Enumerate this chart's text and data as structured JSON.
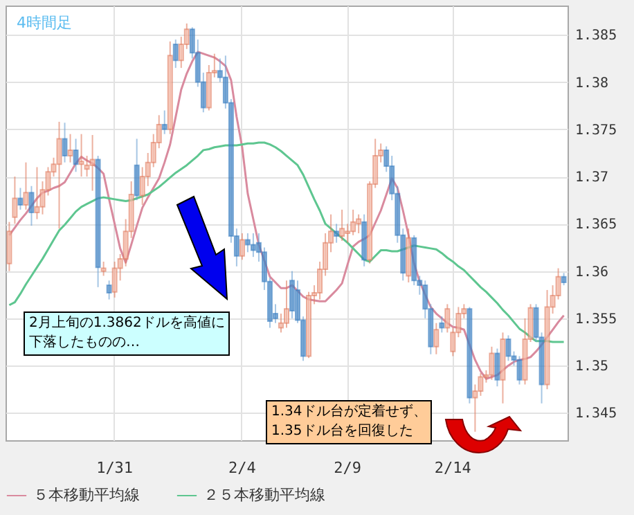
{
  "chart_data": {
    "type": "candlestick",
    "title": "4時間足",
    "categories": [
      null,
      null,
      null,
      null,
      null,
      null,
      null,
      null,
      null,
      null,
      null,
      null,
      null,
      null,
      null,
      null,
      null,
      null,
      null,
      "1/31",
      null,
      null,
      null,
      null,
      null,
      null,
      null,
      null,
      null,
      null,
      null,
      null,
      null,
      null,
      null,
      null,
      null,
      null,
      null,
      null,
      null,
      null,
      "2/4",
      null,
      null,
      null,
      null,
      null,
      null,
      null,
      null,
      null,
      null,
      null,
      null,
      null,
      null,
      null,
      null,
      null,
      null,
      "2/9",
      null,
      null,
      null,
      null,
      null,
      null,
      null,
      null,
      null,
      null,
      null,
      null,
      null,
      null,
      null,
      null,
      null,
      null,
      "2/14",
      null,
      null,
      null,
      null,
      null,
      null,
      null,
      null,
      null,
      null,
      null,
      null,
      null,
      null,
      null,
      null,
      null,
      null,
      null,
      null
    ],
    "ohlc": [
      [
        1.3608,
        1.3652,
        1.36,
        1.3642
      ],
      [
        1.3657,
        1.37,
        1.365,
        1.3677
      ],
      [
        1.3677,
        1.3688,
        1.3665,
        1.367
      ],
      [
        1.367,
        1.3715,
        1.3665,
        1.3683
      ],
      [
        1.3683,
        1.369,
        1.3648,
        1.3662
      ],
      [
        1.3662,
        1.371,
        1.3655,
        1.3668
      ],
      [
        1.3668,
        1.3695,
        1.366,
        1.3686
      ],
      [
        1.3686,
        1.371,
        1.368,
        1.3705
      ],
      [
        1.3705,
        1.372,
        1.37,
        1.3713
      ],
      [
        1.3713,
        1.3758,
        1.3645,
        1.374
      ],
      [
        1.374,
        1.3757,
        1.3715,
        1.3722
      ],
      [
        1.3722,
        1.3745,
        1.3715,
        1.3728
      ],
      [
        1.3728,
        1.374,
        1.3705,
        1.3713
      ],
      [
        1.3713,
        1.3745,
        1.37,
        1.3716
      ],
      [
        1.3708,
        1.3722,
        1.37,
        1.3712
      ],
      [
        1.3712,
        1.3744,
        1.3685,
        1.3718
      ],
      [
        1.3718,
        1.3722,
        1.3583,
        1.3604
      ],
      [
        1.36,
        1.361,
        1.3595,
        1.3603
      ],
      [
        1.3585,
        1.359,
        1.357,
        1.3577
      ],
      [
        1.3578,
        1.361,
        1.3572,
        1.3603
      ],
      [
        1.3603,
        1.3618,
        1.359,
        1.3613
      ],
      [
        1.3613,
        1.3655,
        1.3605,
        1.3642
      ],
      [
        1.3642,
        1.3695,
        1.3635,
        1.3681
      ],
      [
        1.3712,
        1.374,
        1.3675,
        1.368
      ],
      [
        1.368,
        1.371,
        1.367,
        1.37
      ],
      [
        1.37,
        1.3725,
        1.369,
        1.3715
      ],
      [
        1.3715,
        1.3745,
        1.371,
        1.3736
      ],
      [
        1.3736,
        1.3765,
        1.373,
        1.3755
      ],
      [
        1.3755,
        1.377,
        1.3745,
        1.375
      ],
      [
        1.375,
        1.3843,
        1.3745,
        1.3828
      ],
      [
        1.384,
        1.3845,
        1.3815,
        1.3823
      ],
      [
        1.3823,
        1.3848,
        1.3815,
        1.384
      ],
      [
        1.384,
        1.3862,
        1.3835,
        1.3856
      ],
      [
        1.3856,
        1.3858,
        1.3825,
        1.3831
      ],
      [
        1.3831,
        1.3845,
        1.3795,
        1.38
      ],
      [
        1.38,
        1.381,
        1.3768,
        1.3773
      ],
      [
        1.3773,
        1.3818,
        1.377,
        1.381
      ],
      [
        1.381,
        1.383,
        1.3805,
        1.3812
      ],
      [
        1.3812,
        1.3825,
        1.38,
        1.3805
      ],
      [
        1.3805,
        1.3828,
        1.3772,
        1.3778
      ],
      [
        1.3778,
        1.3782,
        1.363,
        1.3637
      ],
      [
        1.3637,
        1.3645,
        1.3605,
        1.3616
      ],
      [
        1.3616,
        1.364,
        1.3612,
        1.3633
      ],
      [
        1.3633,
        1.364,
        1.362,
        1.3628
      ],
      [
        1.3628,
        1.364,
        1.3615,
        1.3622
      ],
      [
        1.363,
        1.364,
        1.361,
        1.362
      ],
      [
        1.362,
        1.3625,
        1.358,
        1.3589
      ],
      [
        1.3589,
        1.3593,
        1.354,
        1.3547
      ],
      [
        1.3555,
        1.3565,
        1.3545,
        1.355
      ],
      [
        1.354,
        1.3555,
        1.3535,
        1.3545
      ],
      [
        1.3545,
        1.359,
        1.354,
        1.356
      ],
      [
        1.359,
        1.36,
        1.355,
        1.3558
      ],
      [
        1.358,
        1.359,
        1.3545,
        1.3548
      ],
      [
        1.3548,
        1.3552,
        1.3505,
        1.351
      ],
      [
        1.351,
        1.3578,
        1.3508,
        1.3574
      ],
      [
        1.3574,
        1.3585,
        1.3565,
        1.3577
      ],
      [
        1.3577,
        1.361,
        1.357,
        1.3602
      ],
      [
        1.3602,
        1.364,
        1.3595,
        1.363
      ],
      [
        1.363,
        1.366,
        1.362,
        1.3642
      ],
      [
        1.3642,
        1.365,
        1.363,
        1.3637
      ],
      [
        1.3637,
        1.3665,
        1.3632,
        1.3645
      ],
      [
        1.364,
        1.365,
        1.363,
        1.3642
      ],
      [
        1.3642,
        1.3665,
        1.3638,
        1.3652
      ],
      [
        1.365,
        1.366,
        1.364,
        1.3655
      ],
      [
        1.3652,
        1.366,
        1.3605,
        1.3612
      ],
      [
        1.3612,
        1.3695,
        1.3608,
        1.3692
      ],
      [
        1.3692,
        1.374,
        1.3688,
        1.3722
      ],
      [
        1.3722,
        1.3735,
        1.3715,
        1.3728
      ],
      [
        1.3728,
        1.3732,
        1.3705,
        1.3711
      ],
      [
        1.3711,
        1.3722,
        1.3675,
        1.3682
      ],
      [
        1.3682,
        1.369,
        1.363,
        1.3638
      ],
      [
        1.3638,
        1.3645,
        1.359,
        1.3598
      ],
      [
        1.3595,
        1.3645,
        1.3588,
        1.3635
      ],
      [
        1.3635,
        1.3638,
        1.3585,
        1.359
      ],
      [
        1.359,
        1.3595,
        1.3575,
        1.3585
      ],
      [
        1.3585,
        1.359,
        1.355,
        1.356
      ],
      [
        1.356,
        1.3565,
        1.3512,
        1.352
      ],
      [
        1.352,
        1.3545,
        1.3512,
        1.3538
      ],
      [
        1.3545,
        1.3552,
        1.3535,
        1.354
      ],
      [
        1.354,
        1.3565,
        1.3535,
        1.356
      ],
      [
        1.3515,
        1.354,
        1.351,
        1.3535
      ],
      [
        1.3535,
        1.3562,
        1.353,
        1.3555
      ],
      [
        1.3555,
        1.3565,
        1.355,
        1.356
      ],
      [
        1.356,
        1.3562,
        1.346,
        1.3466
      ],
      [
        1.3466,
        1.348,
        1.343,
        1.3473
      ],
      [
        1.3473,
        1.3492,
        1.3468,
        1.3488
      ],
      [
        1.3488,
        1.3495,
        1.3482,
        1.349
      ],
      [
        1.349,
        1.352,
        1.3485,
        1.3513
      ],
      [
        1.3513,
        1.3518,
        1.3478,
        1.3485
      ],
      [
        1.3485,
        1.3535,
        1.346,
        1.3528
      ],
      [
        1.3528,
        1.3532,
        1.3505,
        1.351
      ],
      [
        1.351,
        1.3515,
        1.35,
        1.3506
      ],
      [
        1.3506,
        1.351,
        1.348,
        1.3485
      ],
      [
        1.3485,
        1.355,
        1.348,
        1.3528
      ],
      [
        1.3528,
        1.3565,
        1.3525,
        1.3561
      ],
      [
        1.3561,
        1.3565,
        1.3525,
        1.353
      ],
      [
        1.353,
        1.3535,
        1.346,
        1.348
      ],
      [
        1.348,
        1.358,
        1.3475,
        1.3562
      ],
      [
        1.3562,
        1.3585,
        1.3555,
        1.3574
      ],
      [
        1.3574,
        1.3603,
        1.357,
        1.3594
      ],
      [
        1.3594,
        1.3598,
        1.3585,
        1.3588
      ]
    ],
    "series": [
      {
        "name": "５本移動平均線",
        "type": "line",
        "color": "#d98a9e",
        "values": [
          1.3638,
          1.3646,
          1.3654,
          1.3661,
          1.3669,
          1.3677,
          1.3683,
          1.3685,
          1.3688,
          1.369,
          1.3694,
          1.3704,
          1.3714,
          1.3721,
          1.3717,
          1.3714,
          1.3709,
          1.3703,
          1.3676,
          1.365,
          1.3624,
          1.3609,
          1.3628,
          1.3648,
          1.3667,
          1.3678,
          1.3688,
          1.3698,
          1.3715,
          1.3734,
          1.3763,
          1.3792,
          1.3809,
          1.3822,
          1.3832,
          1.383,
          1.3828,
          1.3826,
          1.3822,
          1.3817,
          1.3802,
          1.3763,
          1.3731,
          1.3682,
          1.3655,
          1.3628,
          1.3611,
          1.3594,
          1.3588,
          1.3582,
          1.3582,
          1.3585,
          1.3579,
          1.3573,
          1.357,
          1.3569,
          1.3568,
          1.3568,
          1.3574,
          1.358,
          1.3587,
          1.3607,
          1.3626,
          1.3631,
          1.3634,
          1.3638,
          1.3651,
          1.3664,
          1.3681,
          1.3698,
          1.3688,
          1.3664,
          1.3638,
          1.3608,
          1.3589,
          1.3575,
          1.3562,
          1.3555,
          1.355,
          1.3545,
          1.3541,
          1.354,
          1.3538,
          1.3522,
          1.3506,
          1.3494,
          1.3486,
          1.3488,
          1.349,
          1.3495,
          1.35,
          1.3504,
          1.3506,
          1.3507,
          1.3509,
          1.3515,
          1.3522,
          1.353,
          1.3538,
          1.3546,
          1.3553
        ]
      },
      {
        "name": "２５本移動平均線",
        "type": "line",
        "color": "#5ec690",
        "values": [
          1.3564,
          1.3567,
          1.3576,
          1.3586,
          1.3595,
          1.3604,
          1.3613,
          1.3623,
          1.3633,
          1.3643,
          1.3649,
          1.3656,
          1.3663,
          1.3668,
          1.3671,
          1.3674,
          1.3677,
          1.3678,
          1.3677,
          1.3676,
          1.3675,
          1.3674,
          1.3675,
          1.3677,
          1.3679,
          1.3681,
          1.3685,
          1.3689,
          1.3694,
          1.3699,
          1.3704,
          1.3708,
          1.3712,
          1.3717,
          1.3722,
          1.3728,
          1.3729,
          1.3731,
          1.3732,
          1.3733,
          1.3733,
          1.3733,
          1.3734,
          1.3735,
          1.3735,
          1.3736,
          1.3736,
          1.3734,
          1.3731,
          1.3727,
          1.3722,
          1.3717,
          1.3712,
          1.3702,
          1.3689,
          1.3676,
          1.3664,
          1.365,
          1.3645,
          1.364,
          1.3635,
          1.363,
          1.3624,
          1.3618,
          1.3612,
          1.361,
          1.3616,
          1.3622,
          1.3622,
          1.3621,
          1.3621,
          1.3623,
          1.3625,
          1.3627,
          1.3626,
          1.3625,
          1.3624,
          1.3623,
          1.3619,
          1.3614,
          1.361,
          1.3605,
          1.3601,
          1.3595,
          1.3589,
          1.3583,
          1.3578,
          1.3572,
          1.3566,
          1.3559,
          1.3553,
          1.3546,
          1.3539,
          1.3535,
          1.353,
          1.3526,
          1.3526,
          1.3526,
          1.3525,
          1.3525,
          1.3525
        ]
      }
    ],
    "ylim": [
      1.3421,
      1.3881
    ],
    "yticks": [
      1.345,
      1.35,
      1.355,
      1.36,
      1.365,
      1.37,
      1.375,
      1.38,
      1.385
    ],
    "grid": true,
    "legend": "bottom",
    "annotations": [
      "2月上旬の1.3862ドルを高値に下落したものの…",
      "1.34ドル台が定着せず、1.35ドル台を回復した"
    ]
  }
}
